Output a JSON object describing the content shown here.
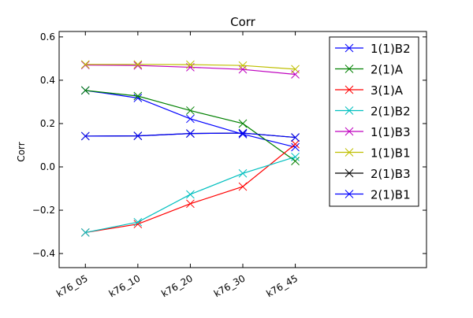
{
  "chart_data": {
    "type": "line",
    "title": "Corr",
    "xlabel": "",
    "ylabel": "Corr",
    "categories": [
      "k76_05",
      "k76_10",
      "k76_20",
      "k76_30",
      "k76_45"
    ],
    "xlim": [
      -0.5,
      6.5
    ],
    "ylim": [
      -0.465,
      0.625
    ],
    "yticks": [
      -0.4,
      -0.2,
      0.0,
      0.2,
      0.4,
      0.6
    ],
    "ytick_labels": [
      "−0.4",
      "−0.2",
      "0.0",
      "0.2",
      "0.4",
      "0.6"
    ],
    "grid": false,
    "legend_position": "top-right",
    "marker": "x",
    "series": [
      {
        "name": "1(1)B2",
        "color": "#0000ff",
        "values": [
          0.353,
          0.318,
          0.222,
          0.151,
          0.091
        ]
      },
      {
        "name": "2(1)A",
        "color": "#008000",
        "values": [
          0.353,
          0.327,
          0.26,
          0.2,
          0.027
        ]
      },
      {
        "name": "3(1)A",
        "color": "#ff0000",
        "values": [
          -0.303,
          -0.264,
          -0.17,
          -0.091,
          0.105
        ]
      },
      {
        "name": "2(1)B2",
        "color": "#00bfbf",
        "values": [
          -0.303,
          -0.255,
          -0.127,
          -0.03,
          0.046
        ]
      },
      {
        "name": "1(1)B3",
        "color": "#bf00bf",
        "values": [
          0.47,
          0.468,
          0.46,
          0.45,
          0.427
        ]
      },
      {
        "name": "1(1)B1",
        "color": "#bfbf00",
        "values": [
          0.473,
          0.473,
          0.472,
          0.468,
          0.451
        ]
      },
      {
        "name": "2(1)B3",
        "color": "#000000",
        "values": [
          0.142,
          0.143,
          0.154,
          0.156,
          0.136
        ]
      },
      {
        "name": "2(1)B1",
        "color": "#0000ff",
        "values": [
          0.142,
          0.143,
          0.154,
          0.156,
          0.136
        ]
      }
    ]
  }
}
